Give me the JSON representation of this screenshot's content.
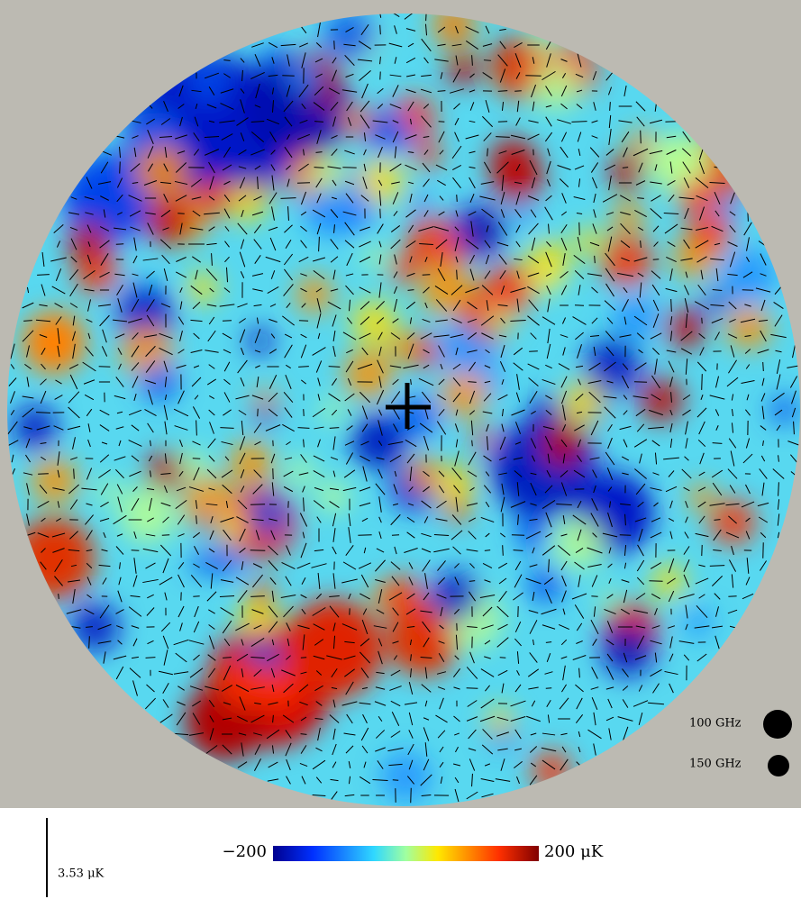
{
  "colorbar": {
    "min_label": "−200",
    "max_label": "200 μK"
  },
  "scale_bar": {
    "label": "3.53 μK"
  },
  "beams": [
    {
      "label": "100 GHz"
    },
    {
      "label": "150 GHz"
    }
  ]
}
